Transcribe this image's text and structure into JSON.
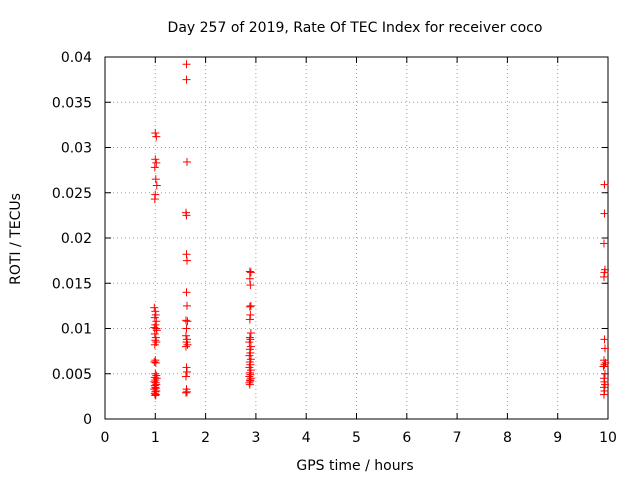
{
  "chart_data": {
    "type": "scatter",
    "title": "Day 257 of 2019, Rate Of TEC Index for receiver coco",
    "xlabel": "GPS time / hours",
    "ylabel": "ROTI / TECUs",
    "xlim": [
      0,
      10
    ],
    "ylim": [
      0,
      0.04
    ],
    "xticks": [
      "0",
      "1",
      "2",
      "3",
      "4",
      "5",
      "6",
      "7",
      "8",
      "9",
      "10"
    ],
    "yticks": [
      "0",
      "0.005",
      "0.01",
      "0.015",
      "0.02",
      "0.025",
      "0.03",
      "0.035",
      "0.04"
    ],
    "grid": true,
    "marker": "+",
    "color": "#ff0000",
    "series": [
      {
        "name": "ROTI",
        "points": [
          [
            1.0,
            0.0316
          ],
          [
            1.02,
            0.0312
          ],
          [
            1.0,
            0.0287
          ],
          [
            1.02,
            0.0283
          ],
          [
            0.99,
            0.0278
          ],
          [
            1.01,
            0.0265
          ],
          [
            1.03,
            0.0258
          ],
          [
            1.0,
            0.0248
          ],
          [
            0.99,
            0.0243
          ],
          [
            0.98,
            0.0123
          ],
          [
            1.0,
            0.0119
          ],
          [
            1.01,
            0.0115
          ],
          [
            0.99,
            0.0112
          ],
          [
            1.02,
            0.0108
          ],
          [
            1.0,
            0.0104
          ],
          [
            0.98,
            0.0101
          ],
          [
            1.02,
            0.01
          ],
          [
            1.03,
            0.0098
          ],
          [
            0.99,
            0.0094
          ],
          [
            1.01,
            0.009
          ],
          [
            1.0,
            0.0087
          ],
          [
            1.02,
            0.0085
          ],
          [
            0.99,
            0.0082
          ],
          [
            1.0,
            0.0065
          ],
          [
            0.98,
            0.0063
          ],
          [
            1.01,
            0.0062
          ],
          [
            1.0,
            0.005
          ],
          [
            1.02,
            0.0048
          ],
          [
            0.99,
            0.0046
          ],
          [
            1.03,
            0.0045
          ],
          [
            1.0,
            0.0043
          ],
          [
            0.98,
            0.0041
          ],
          [
            1.01,
            0.004
          ],
          [
            1.02,
            0.0038
          ],
          [
            0.99,
            0.0037
          ],
          [
            1.0,
            0.0035
          ],
          [
            1.01,
            0.0034
          ],
          [
            0.98,
            0.0033
          ],
          [
            1.02,
            0.0031
          ],
          [
            1.0,
            0.003
          ],
          [
            0.99,
            0.0028
          ],
          [
            1.01,
            0.0027
          ],
          [
            1.0,
            0.0026
          ],
          [
            1.62,
            0.0392
          ],
          [
            1.62,
            0.0375
          ],
          [
            1.63,
            0.0284
          ],
          [
            1.61,
            0.0228
          ],
          [
            1.62,
            0.0225
          ],
          [
            1.62,
            0.0182
          ],
          [
            1.63,
            0.0175
          ],
          [
            1.62,
            0.014
          ],
          [
            1.63,
            0.0125
          ],
          [
            1.61,
            0.0109
          ],
          [
            1.64,
            0.0108
          ],
          [
            1.62,
            0.01
          ],
          [
            1.61,
            0.0092
          ],
          [
            1.63,
            0.0088
          ],
          [
            1.62,
            0.0085
          ],
          [
            1.64,
            0.0082
          ],
          [
            1.61,
            0.008
          ],
          [
            1.62,
            0.0057
          ],
          [
            1.63,
            0.0052
          ],
          [
            1.61,
            0.0047
          ],
          [
            1.62,
            0.0033
          ],
          [
            1.63,
            0.003
          ],
          [
            1.61,
            0.0029
          ],
          [
            2.88,
            0.0163
          ],
          [
            2.9,
            0.0162
          ],
          [
            2.88,
            0.0155
          ],
          [
            2.89,
            0.0148
          ],
          [
            2.9,
            0.0125
          ],
          [
            2.88,
            0.0124
          ],
          [
            2.89,
            0.0115
          ],
          [
            2.88,
            0.011
          ],
          [
            2.9,
            0.0095
          ],
          [
            2.88,
            0.009
          ],
          [
            2.89,
            0.0088
          ],
          [
            2.87,
            0.0085
          ],
          [
            2.9,
            0.008
          ],
          [
            2.88,
            0.0077
          ],
          [
            2.89,
            0.0073
          ],
          [
            2.87,
            0.007
          ],
          [
            2.9,
            0.0066
          ],
          [
            2.88,
            0.0063
          ],
          [
            2.89,
            0.006
          ],
          [
            2.87,
            0.0057
          ],
          [
            2.9,
            0.0054
          ],
          [
            2.88,
            0.0051
          ],
          [
            2.89,
            0.0049
          ],
          [
            2.87,
            0.0047
          ],
          [
            2.9,
            0.0045
          ],
          [
            2.88,
            0.0043
          ],
          [
            2.89,
            0.0042
          ],
          [
            2.87,
            0.004
          ],
          [
            2.88,
            0.0038
          ],
          [
            9.93,
            0.0259
          ],
          [
            9.93,
            0.0227
          ],
          [
            9.92,
            0.0194
          ],
          [
            9.94,
            0.0165
          ],
          [
            9.93,
            0.0162
          ],
          [
            9.92,
            0.0157
          ],
          [
            9.93,
            0.0088
          ],
          [
            9.94,
            0.0078
          ],
          [
            9.92,
            0.0065
          ],
          [
            9.95,
            0.0062
          ],
          [
            9.93,
            0.006
          ],
          [
            9.91,
            0.0058
          ],
          [
            9.94,
            0.005
          ],
          [
            9.92,
            0.0045
          ],
          [
            9.93,
            0.0041
          ],
          [
            9.94,
            0.0038
          ],
          [
            9.92,
            0.0035
          ],
          [
            9.93,
            0.0031
          ],
          [
            9.92,
            0.0027
          ]
        ]
      }
    ]
  }
}
